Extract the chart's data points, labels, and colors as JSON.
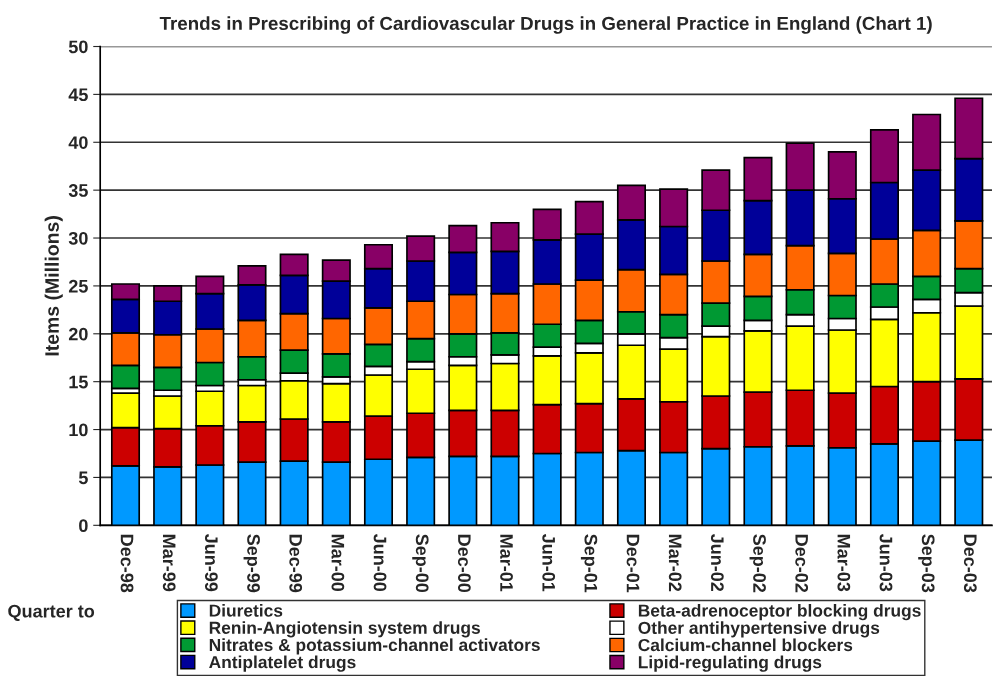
{
  "chart_data": {
    "type": "bar",
    "stacked": true,
    "title": "Trends in Prescribing of Cardiovascular Drugs in General Practice in England (Chart 1)",
    "xlabel": "Quarter to",
    "ylabel": "Items (Millions)",
    "categories": [
      "Dec-98",
      "Mar-99",
      "Jun-99",
      "Sep-99",
      "Dec-99",
      "Mar-00",
      "Jun-00",
      "Sep-00",
      "Dec-00",
      "Mar-01",
      "Jun-01",
      "Sep-01",
      "Dec-01",
      "Mar-02",
      "Jun-02",
      "Sep-02",
      "Dec-02",
      "Mar-03",
      "Jun-03",
      "Sep-03",
      "Dec-03"
    ],
    "series": [
      {
        "name": "Diuretics",
        "color": "#0099ff",
        "values": [
          6.2,
          6.1,
          6.3,
          6.6,
          6.7,
          6.6,
          6.9,
          7.1,
          7.2,
          7.2,
          7.5,
          7.6,
          7.8,
          7.6,
          8.0,
          8.2,
          8.3,
          8.1,
          8.5,
          8.8,
          8.9
        ]
      },
      {
        "name": "Beta-adrenoceptor blocking drugs",
        "color": "#cc0000",
        "values": [
          4.0,
          4.0,
          4.1,
          4.2,
          4.4,
          4.2,
          4.5,
          4.6,
          4.8,
          4.8,
          5.1,
          5.1,
          5.4,
          5.3,
          5.5,
          5.7,
          5.8,
          5.7,
          6.0,
          6.2,
          6.4
        ]
      },
      {
        "name": "Renin-Angiotensin system drugs",
        "color": "#ffff00",
        "values": [
          3.6,
          3.4,
          3.6,
          3.8,
          4.0,
          4.0,
          4.3,
          4.6,
          4.7,
          4.9,
          5.1,
          5.3,
          5.6,
          5.5,
          6.2,
          6.4,
          6.7,
          6.6,
          7.0,
          7.2,
          7.6
        ]
      },
      {
        "name": "Other antihypertensive drugs",
        "color": "#ffffff",
        "values": [
          0.5,
          0.6,
          0.6,
          0.6,
          0.8,
          0.7,
          0.9,
          0.8,
          0.9,
          0.9,
          0.9,
          1.0,
          1.2,
          1.2,
          1.1,
          1.1,
          1.2,
          1.2,
          1.3,
          1.4,
          1.4
        ]
      },
      {
        "name": "Nitrates & potassium-channel activators",
        "color": "#009933",
        "values": [
          2.4,
          2.4,
          2.4,
          2.4,
          2.4,
          2.4,
          2.3,
          2.4,
          2.4,
          2.3,
          2.4,
          2.4,
          2.3,
          2.4,
          2.4,
          2.5,
          2.6,
          2.4,
          2.4,
          2.4,
          2.5
        ]
      },
      {
        "name": "Calcium-channel blockers",
        "color": "#ff6600",
        "values": [
          3.4,
          3.4,
          3.5,
          3.8,
          3.8,
          3.7,
          3.8,
          3.9,
          4.1,
          4.1,
          4.2,
          4.2,
          4.4,
          4.2,
          4.4,
          4.4,
          4.6,
          4.4,
          4.7,
          4.8,
          5.0
        ]
      },
      {
        "name": "Antiplatelet drugs",
        "color": "#000099",
        "values": [
          3.5,
          3.5,
          3.7,
          3.7,
          4.0,
          3.9,
          4.1,
          4.2,
          4.4,
          4.4,
          4.6,
          4.8,
          5.2,
          5.0,
          5.3,
          5.6,
          5.8,
          5.7,
          5.9,
          6.3,
          6.5
        ]
      },
      {
        "name": "Lipid-regulating drugs",
        "color": "#880066",
        "values": [
          1.6,
          1.6,
          1.8,
          2.0,
          2.2,
          2.2,
          2.5,
          2.6,
          2.8,
          3.0,
          3.2,
          3.4,
          3.6,
          3.9,
          4.2,
          4.5,
          4.9,
          4.9,
          5.5,
          5.8,
          6.3
        ]
      }
    ],
    "ylim": [
      0,
      50
    ],
    "yticks": [
      0,
      5,
      10,
      15,
      20,
      25,
      30,
      35,
      40,
      45,
      50
    ],
    "grid": "y",
    "legend": "bottom"
  }
}
